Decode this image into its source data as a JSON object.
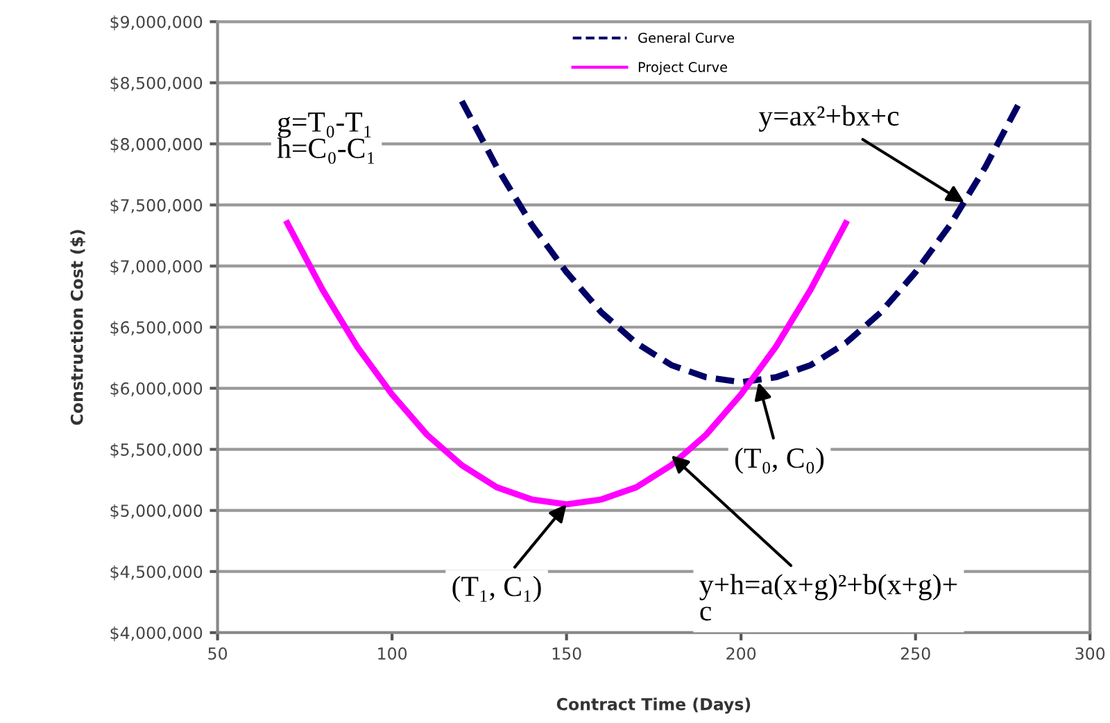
{
  "chart_data": {
    "type": "line",
    "xlabel": "Contract Time (Days)",
    "ylabel": "Construction Cost ($)",
    "series": [
      {
        "name": "General Curve",
        "color": "#000066",
        "line_style": "dashed",
        "x": [
          120,
          130,
          140,
          150,
          160,
          170,
          180,
          190,
          200,
          210,
          220,
          230,
          240,
          250,
          260,
          270,
          280
        ],
        "values": [
          8350000.0,
          7810000.0,
          7340000.0,
          6950000.0,
          6620000.0,
          6370000.0,
          6190000.0,
          6090000.0,
          6050000.0,
          6090000.0,
          6190000.0,
          6370000.0,
          6620000.0,
          6950000.0,
          7340000.0,
          7810000.0,
          8350000.0
        ]
      },
      {
        "name": "Project Curve",
        "color": "#ff00ff",
        "line_style": "solid",
        "x": [
          70,
          80,
          90,
          100,
          110,
          120,
          130,
          140,
          150,
          160,
          170,
          180,
          190,
          200,
          210,
          220,
          230
        ],
        "values": [
          7350000.0,
          6810000.0,
          6340000.0,
          5950000.0,
          5620000.0,
          5370000.0,
          5190000.0,
          5090000.0,
          5050000.0,
          5090000.0,
          5190000.0,
          5370000.0,
          5620000.0,
          5950000.0,
          6340000.0,
          6810000.0,
          7350000.0
        ]
      }
    ],
    "xlim": [
      50,
      300
    ],
    "xticks": [
      50,
      100,
      150,
      200,
      250,
      300
    ],
    "ylim": [
      4000000,
      9000000
    ],
    "yticks": [
      {
        "value": 4000000,
        "label": "$4,000,000"
      },
      {
        "value": 4500000,
        "label": "$4,500,000"
      },
      {
        "value": 5000000,
        "label": "$5,000,000"
      },
      {
        "value": 5500000,
        "label": "$5,500,000"
      },
      {
        "value": 6000000,
        "label": "$6,000,000"
      },
      {
        "value": 6500000,
        "label": "$6,500,000"
      },
      {
        "value": 7000000,
        "label": "$7,000,000"
      },
      {
        "value": 7500000,
        "label": "$7,500,000"
      },
      {
        "value": 8000000,
        "label": "$8,000,000"
      },
      {
        "value": 8500000,
        "label": "$8,500,000"
      },
      {
        "value": 9000000,
        "label": "$9,000,000"
      }
    ],
    "grid": "y",
    "legend": "top",
    "marker": "none",
    "annotations": [
      "g=T₀-T₁\nh=C₀-C₁",
      {
        "text": "y=ax²+bx+c",
        "x": 264,
        "y": 7520000
      },
      {
        "text": "(T₀, C₀)",
        "x": 205,
        "y": 6050000
      },
      {
        "text": "(T₁, C₁)",
        "x": 150,
        "y": 5050000
      },
      {
        "text": "y+h=a(x+g)²+b(x+g)+\nc",
        "x": 180,
        "y": 5450000
      }
    ]
  }
}
